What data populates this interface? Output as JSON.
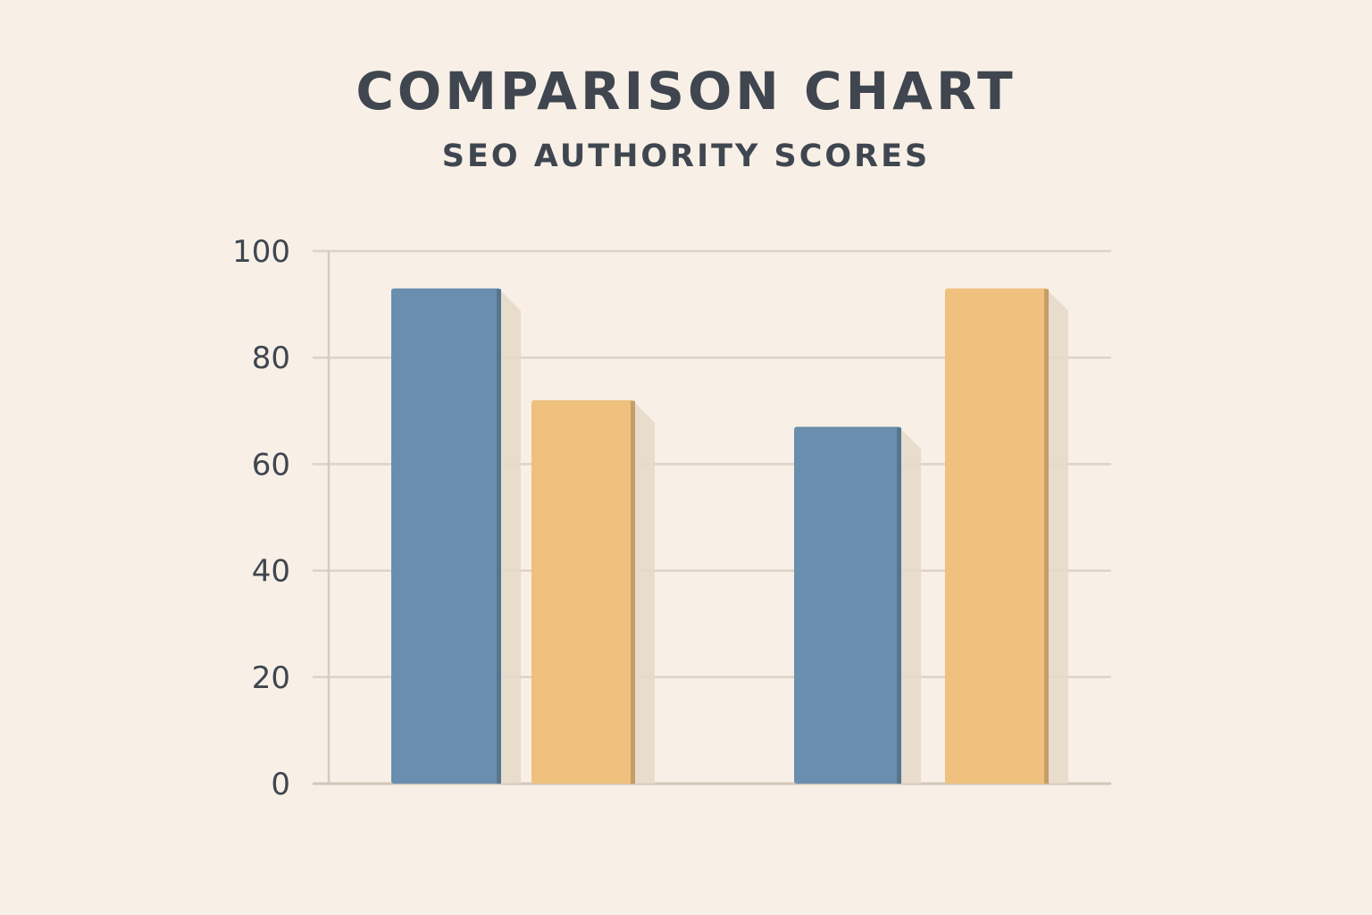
{
  "chart_data": {
    "type": "bar",
    "title": "COMPARISON CHART",
    "subtitle": "SEO AUTHORITY SCORES",
    "xlabel": "",
    "ylabel": "",
    "ylim": [
      0,
      100
    ],
    "yticks": [
      0,
      20,
      40,
      60,
      80,
      100
    ],
    "grid": true,
    "legend": "none",
    "groups": 2,
    "series": [
      {
        "color": "#6a8fae",
        "values": [
          93,
          67
        ]
      },
      {
        "color": "#f0c07e",
        "values": [
          72,
          93
        ]
      }
    ]
  }
}
